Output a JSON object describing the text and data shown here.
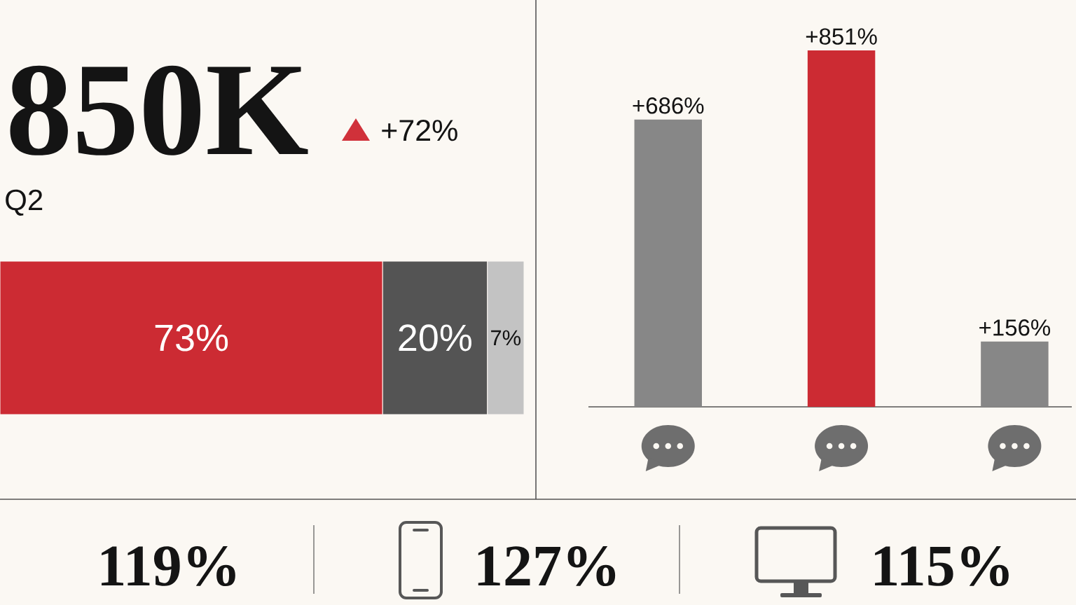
{
  "chart_data": [
    {
      "type": "bar",
      "orientation": "horizontal",
      "stacked": true,
      "title": "850K",
      "subtitle": "Q2",
      "annotations": [
        "+72%"
      ],
      "categories": [
        null
      ],
      "series": [
        {
          "color": "#cc2b33",
          "values": [
            73
          ],
          "value_labels": [
            "73%"
          ]
        },
        {
          "color": "#545454",
          "values": [
            20
          ],
          "value_labels": [
            "20%"
          ]
        },
        {
          "color": "#c3c3c3",
          "values": [
            7
          ],
          "value_labels": [
            "7%"
          ]
        }
      ]
    },
    {
      "type": "bar",
      "categories": [
        null,
        null,
        null
      ],
      "values": [
        686,
        851,
        156
      ],
      "colors": [
        "#878787",
        "#cc2b33",
        "#878787"
      ],
      "value_labels": [
        "+686%",
        "+851%",
        "+156%"
      ]
    },
    {
      "type": "other",
      "annotations": [
        "119%",
        "127%",
        "115%"
      ]
    }
  ]
}
